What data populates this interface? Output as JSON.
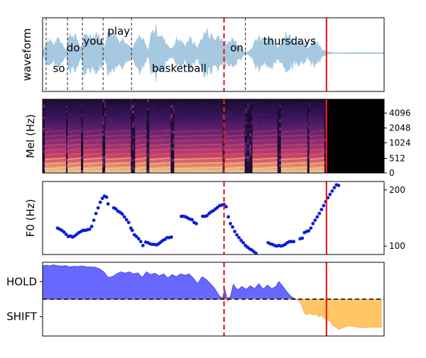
{
  "chart_data": [
    {
      "type": "area",
      "panel": "waveform",
      "ylabel": "waveform",
      "xlim": [
        0,
        48
      ],
      "words": [
        {
          "text": "so",
          "x": 2.3,
          "y": -0.45
        },
        {
          "text": "do",
          "x": 4.3,
          "y": 0.15
        },
        {
          "text": "you",
          "x": 7.1,
          "y": 0.35
        },
        {
          "text": "play",
          "x": 10.7,
          "y": 0.65
        },
        {
          "text": "basketball",
          "x": 19.2,
          "y": -0.45
        },
        {
          "text": "on",
          "x": 27.3,
          "y": 0.15
        },
        {
          "text": "thursdays",
          "x": 34.7,
          "y": 0.35
        }
      ],
      "word_boundaries": [
        0.5,
        3.5,
        5.6,
        8.5,
        12.5,
        28.5
      ],
      "envelope": [
        [
          0,
          0.05
        ],
        [
          0.5,
          0.4
        ],
        [
          1.0,
          0.5
        ],
        [
          1.6,
          0.3
        ],
        [
          2.2,
          0.55
        ],
        [
          2.8,
          0.35
        ],
        [
          3.3,
          0.1
        ],
        [
          3.6,
          0.6
        ],
        [
          4.2,
          0.7
        ],
        [
          4.8,
          0.55
        ],
        [
          5.4,
          0.2
        ],
        [
          5.8,
          0.55
        ],
        [
          6.4,
          0.7
        ],
        [
          7.0,
          0.6
        ],
        [
          7.6,
          0.75
        ],
        [
          8.2,
          0.5
        ],
        [
          8.6,
          0.2
        ],
        [
          9.0,
          0.7
        ],
        [
          9.6,
          0.85
        ],
        [
          10.2,
          0.7
        ],
        [
          10.8,
          0.45
        ],
        [
          11.4,
          0.55
        ],
        [
          12.0,
          0.4
        ],
        [
          12.5,
          0.15
        ],
        [
          13.0,
          0.35
        ],
        [
          13.6,
          0.6
        ],
        [
          14.2,
          0.45
        ],
        [
          14.8,
          0.1
        ],
        [
          15.2,
          0.7
        ],
        [
          15.8,
          0.9
        ],
        [
          16.4,
          0.75
        ],
        [
          17.0,
          0.5
        ],
        [
          17.6,
          0.3
        ],
        [
          18.2,
          0.15
        ],
        [
          18.8,
          0.5
        ],
        [
          19.4,
          0.45
        ],
        [
          20.0,
          0.3
        ],
        [
          20.6,
          0.55
        ],
        [
          21.2,
          0.4
        ],
        [
          21.8,
          0.2
        ],
        [
          22.4,
          0.6
        ],
        [
          23.0,
          0.8
        ],
        [
          23.6,
          0.7
        ],
        [
          24.2,
          0.5
        ],
        [
          24.8,
          0.65
        ],
        [
          25.4,
          0.45
        ],
        [
          26.0,
          0.3
        ],
        [
          26.6,
          0.55
        ],
        [
          27.2,
          0.4
        ],
        [
          27.8,
          0.25
        ],
        [
          28.3,
          0.1
        ],
        [
          28.8,
          0.05
        ],
        [
          29.4,
          0.15
        ],
        [
          30.0,
          0.55
        ],
        [
          30.6,
          0.6
        ],
        [
          31.2,
          0.45
        ],
        [
          31.8,
          0.6
        ],
        [
          32.4,
          0.4
        ],
        [
          33.0,
          0.2
        ],
        [
          33.6,
          0.45
        ],
        [
          34.2,
          0.75
        ],
        [
          34.8,
          0.6
        ],
        [
          35.4,
          0.4
        ],
        [
          36.0,
          0.55
        ],
        [
          36.6,
          0.35
        ],
        [
          37.2,
          0.2
        ],
        [
          37.6,
          0.25
        ],
        [
          38.2,
          0.5
        ],
        [
          38.8,
          0.3
        ],
        [
          39.4,
          0.1
        ],
        [
          40.0,
          0.05
        ],
        [
          41.0,
          0.02
        ],
        [
          48,
          0.02
        ]
      ],
      "markers": {
        "dashed_red_x": 25.5,
        "solid_red_x": 39.9
      }
    },
    {
      "type": "heatmap",
      "panel": "mel",
      "ylabel": "Mel (Hz)",
      "y_tick_labels": [
        "0",
        "512",
        "1024",
        "2048",
        "4096"
      ],
      "xlim": [
        0,
        48
      ],
      "speech_segments": [
        [
          0.3,
          3.3
        ],
        [
          3.5,
          5.4
        ],
        [
          5.7,
          8.4
        ],
        [
          8.8,
          12.4
        ],
        [
          13.0,
          14.6
        ],
        [
          15.0,
          18.0
        ],
        [
          18.5,
          25.3
        ],
        [
          25.6,
          28.4
        ],
        [
          29.5,
          33.0
        ],
        [
          33.5,
          37.2
        ],
        [
          37.5,
          39.6
        ]
      ],
      "silence_start_x": 39.9,
      "markers": {
        "dashed_red_x": 25.5,
        "solid_red_x": 39.9
      }
    },
    {
      "type": "scatter",
      "panel": "f0",
      "ylabel": "F0 (Hz)",
      "y_tick_labels": [
        "100",
        "200"
      ],
      "ylim": [
        85,
        215
      ],
      "xlim": [
        0,
        48
      ],
      "points": [
        [
          2.1,
          132
        ],
        [
          2.4,
          130
        ],
        [
          2.7,
          128
        ],
        [
          3.0,
          125
        ],
        [
          3.3,
          121
        ],
        [
          3.6,
          117
        ],
        [
          3.9,
          118
        ],
        [
          4.2,
          116
        ],
        [
          4.5,
          118
        ],
        [
          4.8,
          121
        ],
        [
          5.1,
          124
        ],
        [
          5.4,
          126
        ],
        [
          5.7,
          128
        ],
        [
          6.0,
          128
        ],
        [
          6.3,
          129
        ],
        [
          6.6,
          130
        ],
        [
          6.9,
          135
        ],
        [
          7.2,
          146
        ],
        [
          7.5,
          158
        ],
        [
          7.8,
          168
        ],
        [
          8.1,
          178
        ],
        [
          8.4,
          185
        ],
        [
          8.7,
          189
        ],
        [
          9.0,
          187
        ],
        [
          9.2,
          175
        ],
        [
          10.0,
          168
        ],
        [
          10.3,
          166
        ],
        [
          10.6,
          162
        ],
        [
          10.9,
          160
        ],
        [
          11.2,
          157
        ],
        [
          11.5,
          152
        ],
        [
          11.8,
          147
        ],
        [
          12.1,
          142
        ],
        [
          12.4,
          132
        ],
        [
          12.6,
          128
        ],
        [
          12.9,
          120
        ],
        [
          13.2,
          117
        ],
        [
          13.5,
          113
        ],
        [
          13.8,
          108
        ],
        [
          14.1,
          101
        ],
        [
          14.5,
          107
        ],
        [
          14.8,
          106
        ],
        [
          15.1,
          104
        ],
        [
          15.4,
          103
        ],
        [
          15.7,
          103
        ],
        [
          16.0,
          102
        ],
        [
          16.3,
          104
        ],
        [
          16.6,
          107
        ],
        [
          16.9,
          110
        ],
        [
          17.2,
          112
        ],
        [
          17.5,
          115
        ],
        [
          17.8,
          115
        ],
        [
          18.1,
          116
        ],
        [
          19.5,
          153
        ],
        [
          19.8,
          153
        ],
        [
          20.1,
          152
        ],
        [
          20.4,
          150
        ],
        [
          20.7,
          148
        ],
        [
          21.0,
          147
        ],
        [
          21.3,
          142
        ],
        [
          21.6,
          140
        ],
        [
          22.5,
          153
        ],
        [
          22.8,
          153
        ],
        [
          23.1,
          154
        ],
        [
          23.4,
          158
        ],
        [
          23.7,
          161
        ],
        [
          24.0,
          163
        ],
        [
          24.3,
          166
        ],
        [
          24.6,
          169
        ],
        [
          24.9,
          172
        ],
        [
          25.2,
          173
        ],
        [
          25.5,
          174
        ],
        [
          25.8,
          170
        ],
        [
          26.1,
          152
        ],
        [
          26.4,
          140
        ],
        [
          26.7,
          134
        ],
        [
          27.0,
          126
        ],
        [
          27.3,
          120
        ],
        [
          27.6,
          115
        ],
        [
          27.9,
          110
        ],
        [
          28.2,
          106
        ],
        [
          28.5,
          101
        ],
        [
          28.8,
          98
        ],
        [
          29.1,
          95
        ],
        [
          29.4,
          93
        ],
        [
          29.7,
          90
        ],
        [
          30.0,
          87
        ],
        [
          31.7,
          106
        ],
        [
          32.0,
          104
        ],
        [
          32.3,
          103
        ],
        [
          32.6,
          101
        ],
        [
          32.9,
          100
        ],
        [
          33.2,
          101
        ],
        [
          33.5,
          100
        ],
        [
          33.8,
          101
        ],
        [
          34.1,
          103
        ],
        [
          34.4,
          106
        ],
        [
          34.7,
          108
        ],
        [
          35.0,
          108
        ],
        [
          35.3,
          108
        ],
        [
          36.2,
          113
        ],
        [
          36.5,
          114
        ],
        [
          36.8,
          124
        ],
        [
          37.1,
          126
        ],
        [
          37.4,
          127
        ],
        [
          37.7,
          132
        ],
        [
          38.0,
          140
        ],
        [
          38.3,
          146
        ],
        [
          38.6,
          152
        ],
        [
          38.9,
          158
        ],
        [
          39.2,
          165
        ],
        [
          39.5,
          172
        ],
        [
          39.8,
          179
        ],
        [
          40.1,
          186
        ],
        [
          40.4,
          192
        ],
        [
          40.7,
          198
        ],
        [
          41.0,
          204
        ],
        [
          41.3,
          209
        ],
        [
          41.6,
          208
        ]
      ],
      "markers": {
        "dashed_red_x": 25.5,
        "solid_red_x": 39.9
      }
    },
    {
      "type": "area",
      "panel": "turn",
      "y_tick_labels": [
        "HOLD",
        "SHIFT"
      ],
      "ylim": [
        -1,
        1
      ],
      "xlim": [
        0,
        48
      ],
      "series": [
        {
          "name": "HOLD",
          "color": "#6666ff",
          "values": [
            [
              0,
              0.95
            ],
            [
              0.5,
              0.97
            ],
            [
              1.0,
              0.95
            ],
            [
              1.5,
              0.98
            ],
            [
              2.0,
              0.96
            ],
            [
              2.6,
              0.94
            ],
            [
              3.2,
              0.96
            ],
            [
              3.8,
              0.92
            ],
            [
              4.4,
              0.94
            ],
            [
              5.0,
              0.93
            ],
            [
              5.6,
              0.95
            ],
            [
              6.2,
              0.92
            ],
            [
              6.8,
              0.92
            ],
            [
              7.4,
              0.91
            ],
            [
              8.0,
              0.86
            ],
            [
              8.6,
              0.78
            ],
            [
              9.2,
              0.62
            ],
            [
              9.8,
              0.64
            ],
            [
              10.4,
              0.72
            ],
            [
              11.0,
              0.78
            ],
            [
              11.6,
              0.74
            ],
            [
              12.2,
              0.78
            ],
            [
              12.8,
              0.72
            ],
            [
              13.4,
              0.75
            ],
            [
              14.0,
              0.62
            ],
            [
              14.6,
              0.78
            ],
            [
              15.2,
              0.7
            ],
            [
              15.8,
              0.74
            ],
            [
              16.4,
              0.66
            ],
            [
              17.0,
              0.72
            ],
            [
              17.6,
              0.6
            ],
            [
              18.2,
              0.7
            ],
            [
              18.8,
              0.64
            ],
            [
              19.4,
              0.72
            ],
            [
              20.0,
              0.68
            ],
            [
              20.6,
              0.72
            ],
            [
              21.2,
              0.6
            ],
            [
              21.8,
              0.44
            ],
            [
              22.4,
              0.64
            ],
            [
              23.0,
              0.56
            ],
            [
              23.6,
              0.44
            ],
            [
              24.2,
              0.3
            ],
            [
              24.8,
              0.1
            ],
            [
              25.3,
              0.02
            ],
            [
              25.6,
              0.3
            ],
            [
              25.9,
              0.02
            ],
            [
              26.4,
              0.06
            ],
            [
              26.8,
              0.42
            ],
            [
              27.4,
              0.26
            ],
            [
              28.0,
              0.36
            ],
            [
              28.6,
              0.28
            ],
            [
              29.2,
              0.38
            ],
            [
              29.8,
              0.3
            ],
            [
              30.4,
              0.44
            ],
            [
              31.0,
              0.28
            ],
            [
              31.6,
              0.4
            ],
            [
              32.2,
              0.3
            ],
            [
              32.8,
              0.36
            ],
            [
              33.2,
              0.5
            ],
            [
              33.7,
              0.38
            ],
            [
              34.2,
              0.24
            ],
            [
              34.8,
              0.1
            ],
            [
              35.2,
              0.04
            ],
            [
              35.6,
              0
            ]
          ]
        },
        {
          "name": "SHIFT",
          "color": "#ffc566",
          "values": [
            [
              25.7,
              0
            ],
            [
              26.0,
              -0.06
            ],
            [
              26.3,
              0
            ],
            [
              35.3,
              0
            ],
            [
              36.0,
              -0.04
            ],
            [
              36.4,
              -0.15
            ],
            [
              36.8,
              -0.4
            ],
            [
              37.2,
              -0.44
            ],
            [
              37.6,
              -0.4
            ],
            [
              38.0,
              -0.45
            ],
            [
              38.4,
              -0.42
            ],
            [
              38.8,
              -0.5
            ],
            [
              39.2,
              -0.46
            ],
            [
              39.6,
              -0.55
            ],
            [
              40.0,
              -0.6
            ],
            [
              40.4,
              -0.62
            ],
            [
              40.8,
              -0.74
            ],
            [
              41.2,
              -0.8
            ],
            [
              41.6,
              -0.86
            ],
            [
              42.0,
              -0.83
            ],
            [
              42.6,
              -0.78
            ],
            [
              43.2,
              -0.76
            ],
            [
              43.8,
              -0.78
            ],
            [
              44.4,
              -0.8
            ],
            [
              45.0,
              -0.82
            ],
            [
              45.6,
              -0.8
            ],
            [
              46.2,
              -0.8
            ],
            [
              46.8,
              -0.8
            ],
            [
              47.2,
              -0.8
            ],
            [
              47.6,
              -0.8
            ],
            [
              47.6,
              0
            ]
          ]
        }
      ],
      "baseline_dashed": 0,
      "markers": {
        "dashed_red_x": 25.5,
        "solid_red_x": 39.9
      }
    }
  ]
}
